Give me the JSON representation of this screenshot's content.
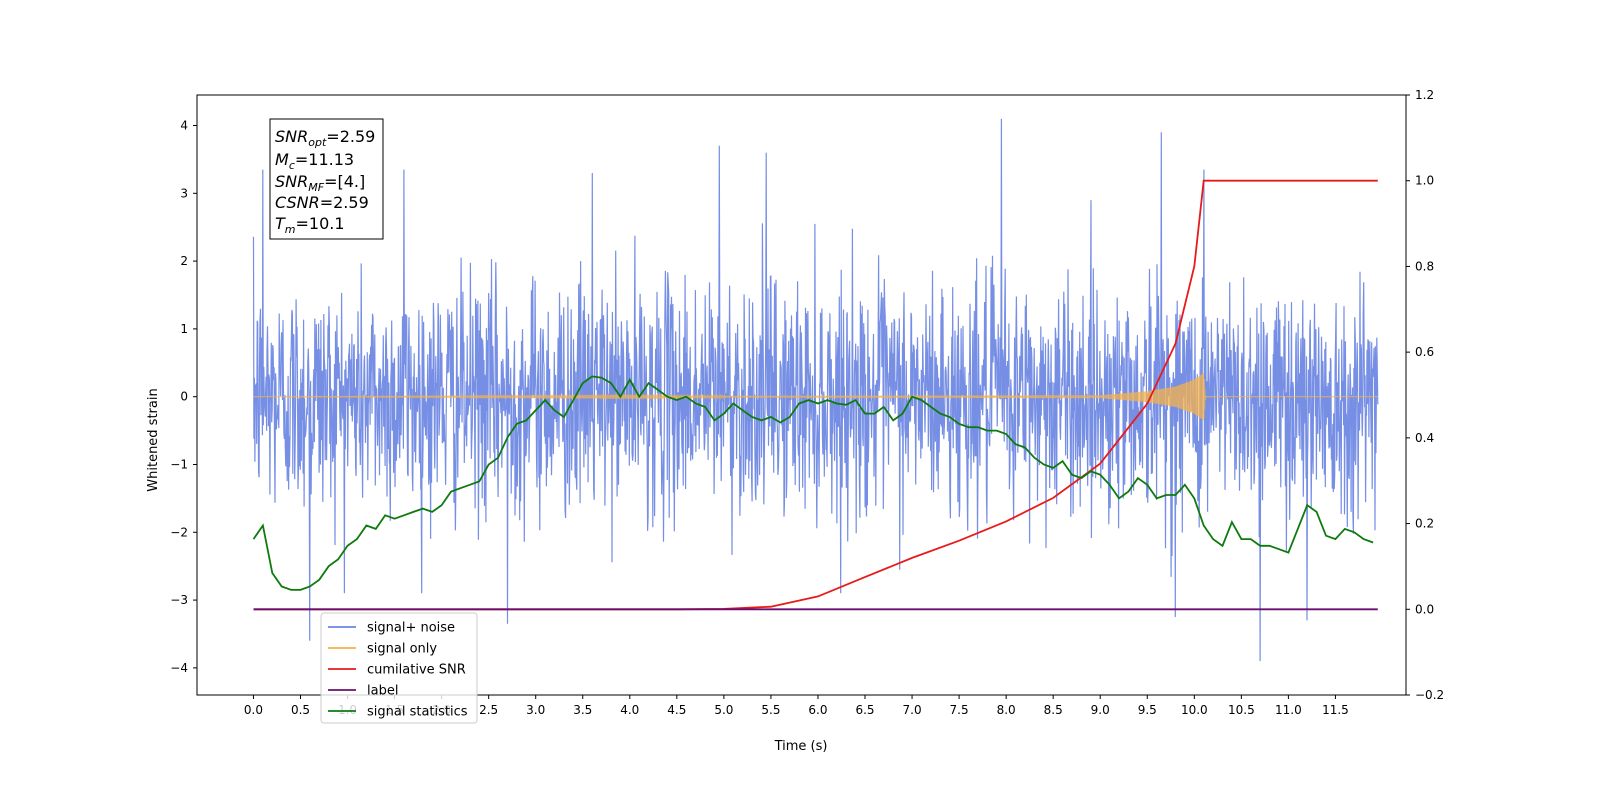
{
  "chart_data": {
    "type": "line",
    "xlabel": "Time (s)",
    "ylabel": "Whitened strain",
    "xlim": [
      -0.6,
      12.25
    ],
    "ylim": [
      -4.4,
      4.45
    ],
    "y2lim": [
      -0.2,
      1.2
    ],
    "x_ticks": [
      "0.0",
      "0.5",
      "1.0",
      "1.5",
      "2.0",
      "2.5",
      "3.0",
      "3.5",
      "4.0",
      "4.5",
      "5.0",
      "5.5",
      "6.0",
      "6.5",
      "7.0",
      "7.5",
      "8.0",
      "8.5",
      "9.0",
      "9.5",
      "10.0",
      "10.5",
      "11.0",
      "11.5"
    ],
    "y_ticks": [
      "4",
      "3",
      "2",
      "1",
      "0",
      "−1",
      "−2",
      "−3",
      "−4"
    ],
    "y2_ticks": [
      "1.2",
      "1.0",
      "0.8",
      "0.6",
      "0.4",
      "0.2",
      "0.0",
      "−0.2"
    ],
    "grid": false,
    "legend_position": "lower-left",
    "info_box": {
      "snr_opt": "=2.59",
      "mc": "=11.13",
      "snr_mf": "=[4.]",
      "csnr": "=2.59",
      "tm": "=10.1"
    },
    "series": [
      {
        "name": "signal+ noise",
        "color": "#6a86e3",
        "description_axis": "left",
        "x_range": [
          0.0,
          11.95
        ],
        "spread_std": 0.85,
        "peaks": [
          [
            0.1,
            3.35
          ],
          [
            1.6,
            3.35
          ],
          [
            3.6,
            3.3
          ],
          [
            4.95,
            3.7
          ],
          [
            5.45,
            3.6
          ],
          [
            7.95,
            4.1
          ],
          [
            9.65,
            3.9
          ],
          [
            10.1,
            3.35
          ],
          [
            0.6,
            -3.6
          ],
          [
            2.7,
            -3.35
          ],
          [
            9.8,
            -3.25
          ],
          [
            10.7,
            -3.9
          ],
          [
            11.2,
            -3.3
          ]
        ]
      },
      {
        "name": "signal only",
        "color": "#f5b14a",
        "description_axis": "left",
        "x": [
          0.0,
          9.0,
          9.5,
          9.8,
          10.0,
          10.1,
          10.12,
          11.95
        ],
        "amplitude": [
          0.0,
          0.02,
          0.08,
          0.15,
          0.25,
          0.35,
          0.0,
          0.0
        ]
      },
      {
        "name": "cumilative SNR",
        "color": "#e81a1a",
        "description_axis": "right",
        "x": [
          0.0,
          4.5,
          5.0,
          5.5,
          6.0,
          6.5,
          7.0,
          7.5,
          8.0,
          8.5,
          9.0,
          9.5,
          9.8,
          10.0,
          10.1,
          11.95
        ],
        "values": [
          0.0,
          0.0,
          0.001,
          0.006,
          0.03,
          0.075,
          0.12,
          0.16,
          0.205,
          0.26,
          0.34,
          0.48,
          0.62,
          0.8,
          1.0,
          1.0
        ]
      },
      {
        "name": "label",
        "color": "#6a0f6f",
        "description_axis": "right",
        "x": [
          0.0,
          11.95
        ],
        "values": [
          0.0,
          0.0
        ]
      },
      {
        "name": "signal statistics",
        "color": "#0e7a0e",
        "description_axis": "left",
        "x": [
          0.0,
          0.1,
          0.2,
          0.3,
          0.4,
          0.5,
          0.6,
          0.7,
          0.8,
          0.9,
          1.0,
          1.1,
          1.2,
          1.3,
          1.4,
          1.5,
          1.6,
          1.7,
          1.8,
          1.9,
          2.0,
          2.1,
          2.2,
          2.3,
          2.4,
          2.5,
          2.6,
          2.7,
          2.8,
          2.9,
          3.0,
          3.1,
          3.2,
          3.3,
          3.4,
          3.5,
          3.6,
          3.7,
          3.8,
          3.9,
          4.0,
          4.1,
          4.2,
          4.3,
          4.4,
          4.5,
          4.6,
          4.7,
          4.8,
          4.9,
          5.0,
          5.1,
          5.2,
          5.3,
          5.4,
          5.5,
          5.6,
          5.7,
          5.8,
          5.9,
          6.0,
          6.1,
          6.2,
          6.3,
          6.4,
          6.5,
          6.6,
          6.7,
          6.8,
          6.9,
          7.0,
          7.1,
          7.2,
          7.3,
          7.4,
          7.5,
          7.6,
          7.7,
          7.8,
          7.9,
          8.0,
          8.1,
          8.2,
          8.3,
          8.4,
          8.5,
          8.6,
          8.7,
          8.8,
          8.9,
          9.0,
          9.1,
          9.2,
          9.3,
          9.4,
          9.5,
          9.6,
          9.7,
          9.8,
          9.9,
          10.0,
          10.1,
          10.2,
          10.3,
          10.4,
          10.5,
          10.6,
          10.7,
          10.8,
          10.9,
          11.0,
          11.1,
          11.2,
          11.3,
          11.4,
          11.5,
          11.6,
          11.7,
          11.8,
          11.9
        ],
        "values": [
          -2.1,
          -1.9,
          -2.6,
          -2.8,
          -2.85,
          -2.85,
          -2.8,
          -2.7,
          -2.5,
          -2.4,
          -2.2,
          -2.1,
          -1.9,
          -1.95,
          -1.75,
          -1.8,
          -1.75,
          -1.7,
          -1.65,
          -1.7,
          -1.6,
          -1.4,
          -1.35,
          -1.3,
          -1.25,
          -1.0,
          -0.9,
          -0.6,
          -0.4,
          -0.35,
          -0.2,
          -0.05,
          -0.2,
          -0.3,
          -0.05,
          0.2,
          0.3,
          0.28,
          0.2,
          0.0,
          0.25,
          0.0,
          0.2,
          0.1,
          0.0,
          -0.05,
          0.0,
          -0.1,
          -0.15,
          -0.35,
          -0.25,
          -0.1,
          -0.2,
          -0.3,
          -0.35,
          -0.3,
          -0.38,
          -0.3,
          -0.1,
          -0.05,
          -0.1,
          -0.05,
          -0.1,
          -0.12,
          -0.05,
          -0.25,
          -0.25,
          -0.15,
          -0.35,
          -0.25,
          0.0,
          -0.05,
          -0.15,
          -0.25,
          -0.3,
          -0.4,
          -0.45,
          -0.45,
          -0.5,
          -0.5,
          -0.55,
          -0.7,
          -0.75,
          -0.9,
          -1.0,
          -1.05,
          -0.95,
          -1.15,
          -1.2,
          -1.1,
          -1.15,
          -1.3,
          -1.5,
          -1.4,
          -1.2,
          -1.3,
          -1.5,
          -1.45,
          -1.45,
          -1.3,
          -1.5,
          -1.9,
          -2.1,
          -2.2,
          -1.85,
          -2.1,
          -2.1,
          -2.2,
          -2.2,
          -2.25,
          -2.3,
          -1.95,
          -1.6,
          -1.7,
          -2.05,
          -2.1,
          -1.95,
          -2.0,
          -2.1,
          -2.15
        ],
        "smoothing_note": ""
      }
    ]
  }
}
